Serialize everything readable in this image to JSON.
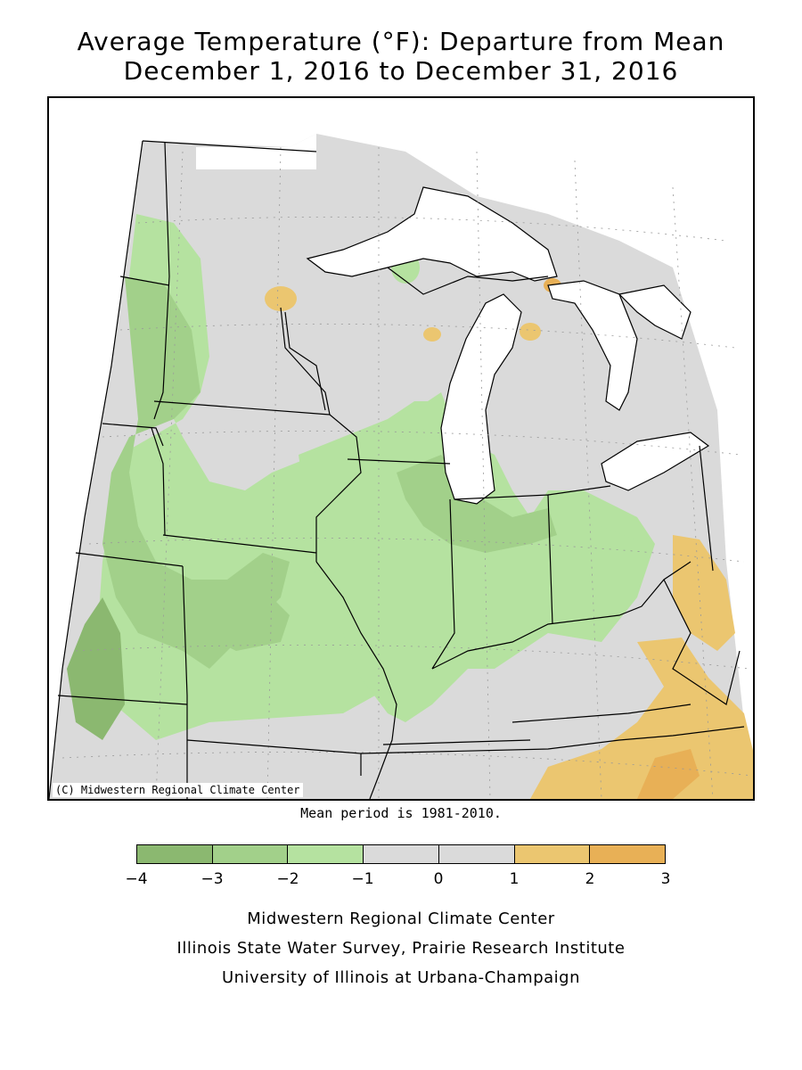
{
  "title": {
    "line1": "Average Temperature (°F): Departure from Mean",
    "line2": "December 1, 2016 to December 31, 2016"
  },
  "map": {
    "copyright": "(C) Midwestern Regional Climate Center",
    "colors": {
      "neg4_neg3": "#8bb870",
      "neg3_neg2": "#a2d08a",
      "neg2_neg1": "#b5e2a0",
      "neg1_0": "#dadada",
      "0_1": "#dadada",
      "1_2": "#ebc670",
      "2_3": "#e8b056",
      "boundary": "#000000",
      "water": "#ffffff"
    }
  },
  "mean_note": "Mean period is 1981-2010.",
  "legend": {
    "bins": [
      {
        "range": "-4 to -3",
        "color": "#8bb870"
      },
      {
        "range": "-3 to -2",
        "color": "#a2d08a"
      },
      {
        "range": "-2 to -1",
        "color": "#b5e2a0"
      },
      {
        "range": "-1 to 0",
        "color": "#dadada"
      },
      {
        "range": "0 to 1",
        "color": "#dadada"
      },
      {
        "range": "1 to 2",
        "color": "#ebc670"
      },
      {
        "range": "2 to 3",
        "color": "#e8b056"
      }
    ],
    "ticks": [
      "−4",
      "−3",
      "−2",
      "−1",
      "0",
      "1",
      "2",
      "3"
    ]
  },
  "credits": {
    "line1": "Midwestern Regional Climate Center",
    "line2": "Illinois State Water Survey, Prairie Research Institute",
    "line3": "University of Illinois at Urbana-Champaign"
  }
}
